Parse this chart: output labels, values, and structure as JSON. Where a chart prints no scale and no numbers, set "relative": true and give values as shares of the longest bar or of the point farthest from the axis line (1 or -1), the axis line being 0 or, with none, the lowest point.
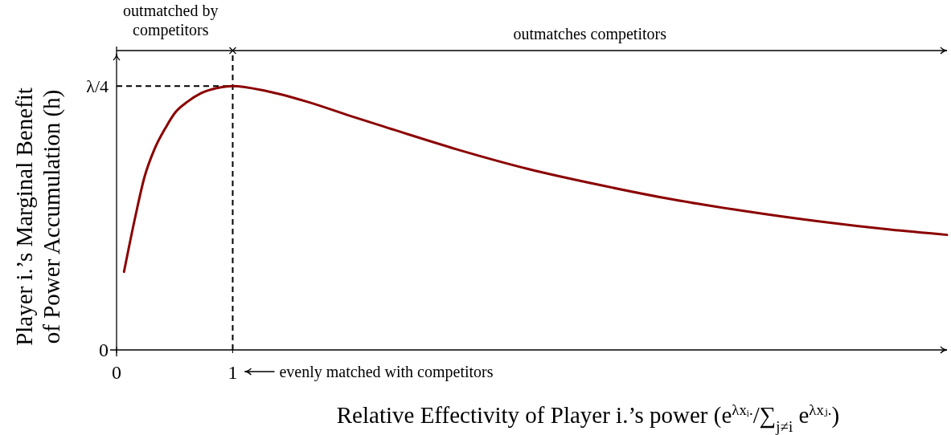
{
  "chart_data": {
    "type": "line",
    "relative": true,
    "xlabel": "Relative Effectivity of Player i.’s power (e$^{λxᵢ.}$/∑$_{j≠i}$ e$^{λxⱼ.}$)",
    "ylabel": "Player i.’s Marginal Benefit\nof Power Accumulation (h)",
    "x": [
      0.064,
      0.161,
      0.241,
      0.322,
      0.425,
      0.506,
      0.609,
      0.724,
      0.862,
      1,
      1.299,
      1.644,
      1.989,
      2.31,
      2.93,
      3.55,
      4.17,
      4.79,
      5.41,
      6.03,
      6.66,
      7.15
    ],
    "series": [
      {
        "color": "#8b0000",
        "values": [
          0.296,
          0.504,
          0.656,
          0.756,
          0.844,
          0.9,
          0.94,
          0.972,
          0.992,
          1,
          0.98,
          0.94,
          0.89,
          0.845,
          0.76,
          0.685,
          0.624,
          0.57,
          0.526,
          0.488,
          0.456,
          0.436
        ]
      }
    ],
    "xlim": [
      0,
      7.15
    ],
    "xticks": [
      0,
      1
    ],
    "ref_lines": [
      {
        "axis": "x",
        "value": 1,
        "line_style": "dashed",
        "color": "#000000"
      },
      {
        "axis": "y",
        "value": 1,
        "line_style": "dashed",
        "color": "#000000",
        "label": "λ/4"
      }
    ],
    "annotations": [
      "0",
      "outmatched by\ncompetitors",
      "outmatches competitors",
      "evenly matched with competitors"
    ],
    "marker": "none",
    "line_style": "solid"
  }
}
